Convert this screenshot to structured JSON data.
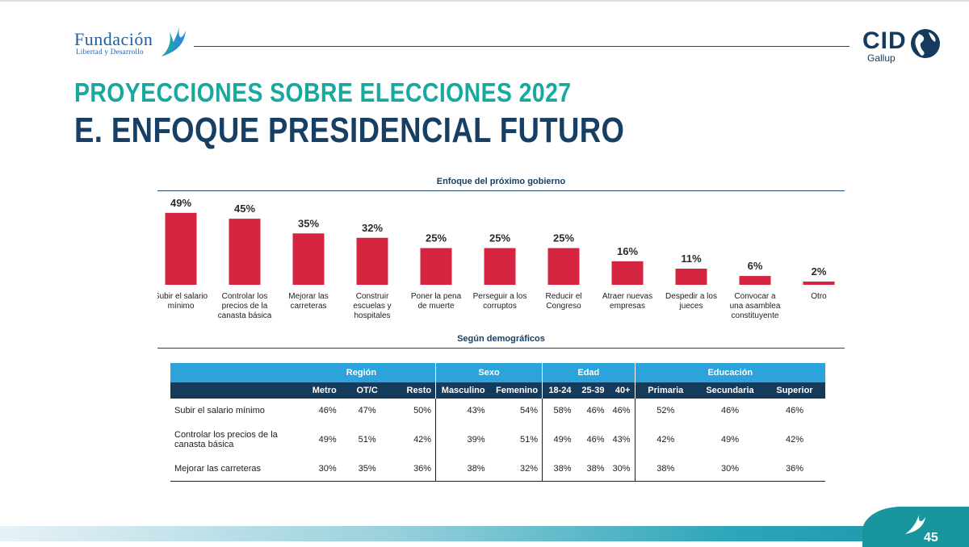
{
  "brand": {
    "left_logo_big": "Fundación",
    "left_logo_small": "Libertad y Desarrollo",
    "right_logo_main": "CID",
    "right_logo_sub": "Gallup"
  },
  "header": {
    "title": "PROYECCIONES SOBRE ELECCIONES 2027",
    "subtitle": "E. ENFOQUE PRESIDENCIAL FUTURO"
  },
  "colors": {
    "bar": "#d42440",
    "teal": "#17a9a0",
    "navy": "#173f63",
    "table_group": "#2da3db"
  },
  "chart_data": {
    "type": "bar",
    "title": "Enfoque del próximo gobierno",
    "categories": [
      [
        "Subir el salario",
        "mínimo"
      ],
      [
        "Controlar los",
        "precios de la",
        "canasta básica"
      ],
      [
        "Mejorar las",
        "carreteras"
      ],
      [
        "Construir",
        "escuelas y",
        "hospitales"
      ],
      [
        "Poner la pena",
        "de muerte"
      ],
      [
        "Perseguir a los",
        "corruptos"
      ],
      [
        "Reducir el",
        "Congreso"
      ],
      [
        "Atraer nuevas",
        "empresas"
      ],
      [
        "Despedir a los",
        "jueces"
      ],
      [
        "Convocar a",
        "una asamblea",
        "constituyente"
      ],
      [
        "Otro"
      ]
    ],
    "values": [
      49,
      45,
      35,
      32,
      25,
      25,
      25,
      16,
      11,
      6,
      2
    ],
    "value_labels": [
      "49%",
      "45%",
      "35%",
      "32%",
      "25%",
      "25%",
      "25%",
      "16%",
      "11%",
      "6%",
      "2%"
    ],
    "unit": "%",
    "ylim": [
      0,
      50
    ],
    "grid": false
  },
  "demographics": {
    "title": "Según demográficos",
    "groups": [
      "Región",
      "Sexo",
      "Edad",
      "Educación"
    ],
    "columns": [
      "Metro",
      "OT/C",
      "Resto",
      "Masculino",
      "Femenino",
      "18-24",
      "25-39",
      "40+",
      "Primaria",
      "Secundaria",
      "Superior"
    ],
    "rows": [
      {
        "label": "Subir el salario mínimo",
        "values": [
          "46%",
          "47%",
          "50%",
          "43%",
          "54%",
          "58%",
          "46%",
          "46%",
          "52%",
          "46%",
          "46%"
        ]
      },
      {
        "label": "Controlar los precios de la canasta básica",
        "values": [
          "49%",
          "51%",
          "42%",
          "39%",
          "51%",
          "49%",
          "46%",
          "43%",
          "42%",
          "49%",
          "42%"
        ]
      },
      {
        "label": "Mejorar las carreteras",
        "values": [
          "30%",
          "35%",
          "36%",
          "38%",
          "32%",
          "38%",
          "38%",
          "30%",
          "38%",
          "30%",
          "36%"
        ]
      }
    ]
  },
  "footer": {
    "page_number": "45"
  }
}
